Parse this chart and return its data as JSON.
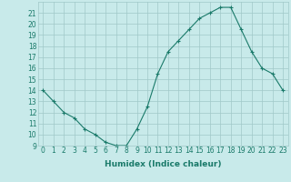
{
  "x": [
    0,
    1,
    2,
    3,
    4,
    5,
    6,
    7,
    8,
    9,
    10,
    11,
    12,
    13,
    14,
    15,
    16,
    17,
    18,
    19,
    20,
    21,
    22,
    23
  ],
  "y": [
    14,
    13,
    12,
    11.5,
    10.5,
    10,
    9.3,
    9,
    9,
    10.5,
    12.5,
    15.5,
    17.5,
    18.5,
    19.5,
    20.5,
    21,
    21.5,
    21.5,
    19.5,
    17.5,
    16,
    15.5,
    14
  ],
  "line_color": "#1a7a6a",
  "marker": "+",
  "marker_size": 3,
  "marker_linewidth": 0.8,
  "bg_color": "#c8eaea",
  "grid_color": "#a0c8c8",
  "xlabel": "Humidex (Indice chaleur)",
  "ylim": [
    9,
    22
  ],
  "xlim": [
    -0.5,
    23.5
  ],
  "yticks": [
    9,
    10,
    11,
    12,
    13,
    14,
    15,
    16,
    17,
    18,
    19,
    20,
    21
  ],
  "xticks": [
    0,
    1,
    2,
    3,
    4,
    5,
    6,
    7,
    8,
    9,
    10,
    11,
    12,
    13,
    14,
    15,
    16,
    17,
    18,
    19,
    20,
    21,
    22,
    23
  ],
  "tick_fontsize": 5.5,
  "xlabel_fontsize": 6.5,
  "tick_color": "#1a7a6a",
  "line_width": 0.8
}
